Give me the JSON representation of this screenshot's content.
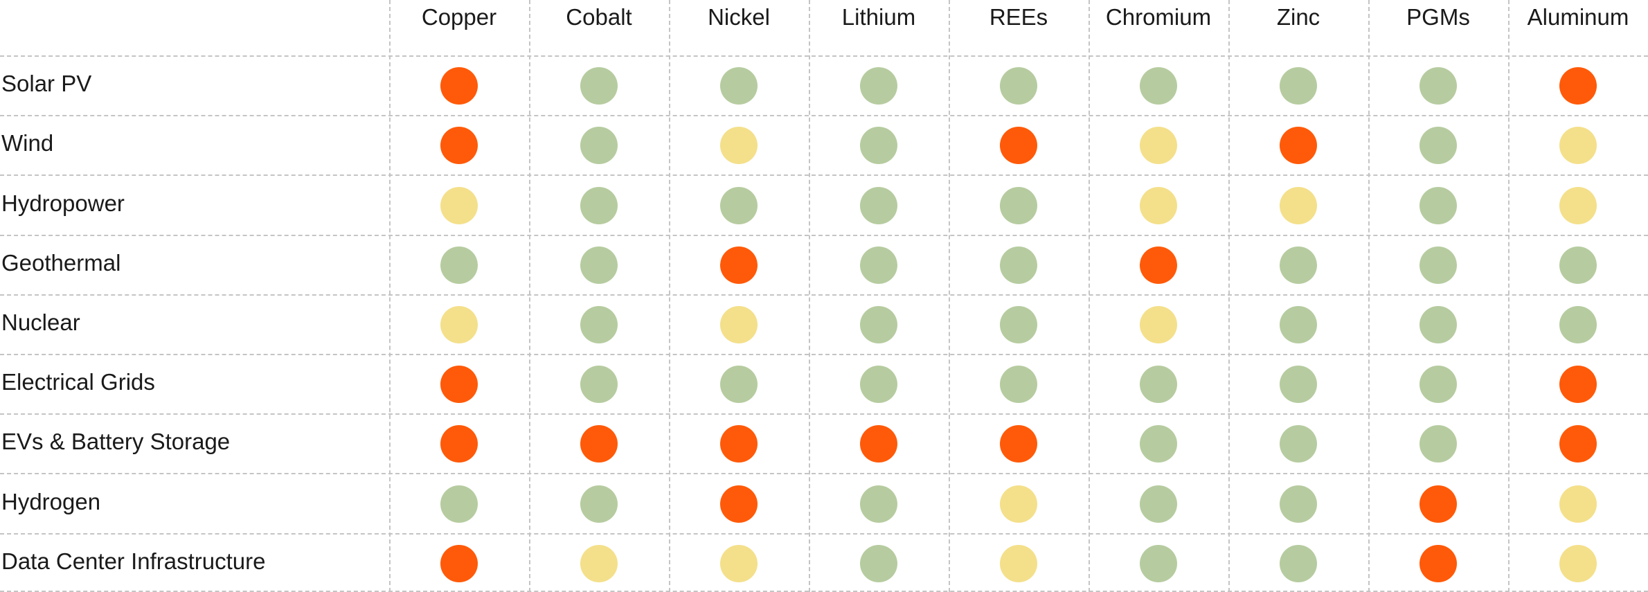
{
  "chart_data": {
    "type": "table",
    "columns": [
      "Copper",
      "Cobalt",
      "Nickel",
      "Lithium",
      "REEs",
      "Chromium",
      "Zinc",
      "PGMs",
      "Aluminum"
    ],
    "rows": [
      "Solar PV",
      "Wind",
      "Hydropower",
      "Geothermal",
      "Nuclear",
      "Electrical Grids",
      "EVs & Battery Storage",
      "Hydrogen",
      "Data Center Infrastructure"
    ],
    "levels": [
      [
        "high",
        "low",
        "low",
        "low",
        "low",
        "low",
        "low",
        "low",
        "high"
      ],
      [
        "high",
        "low",
        "medium",
        "low",
        "high",
        "medium",
        "high",
        "low",
        "medium"
      ],
      [
        "medium",
        "low",
        "low",
        "low",
        "low",
        "medium",
        "medium",
        "low",
        "medium"
      ],
      [
        "low",
        "low",
        "high",
        "low",
        "low",
        "high",
        "low",
        "low",
        "low"
      ],
      [
        "medium",
        "low",
        "medium",
        "low",
        "low",
        "medium",
        "low",
        "low",
        "low"
      ],
      [
        "high",
        "low",
        "low",
        "low",
        "low",
        "low",
        "low",
        "low",
        "high"
      ],
      [
        "high",
        "high",
        "high",
        "high",
        "high",
        "low",
        "low",
        "low",
        "high"
      ],
      [
        "low",
        "low",
        "high",
        "low",
        "medium",
        "low",
        "low",
        "high",
        "medium"
      ],
      [
        "high",
        "medium",
        "medium",
        "low",
        "medium",
        "low",
        "low",
        "high",
        "medium"
      ]
    ],
    "colors": {
      "high": "#ff5a09",
      "medium": "#f4e08b",
      "low": "#b6cca0"
    },
    "grid": true
  }
}
